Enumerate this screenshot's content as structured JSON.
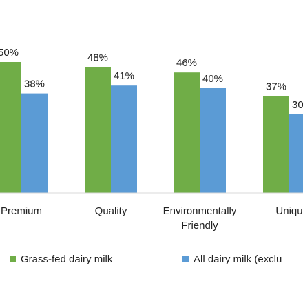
{
  "chart_data": {
    "type": "bar",
    "categories": [
      [
        "Premium"
      ],
      [
        "Quality"
      ],
      [
        "Environmentally",
        "Friendly"
      ],
      [
        "Uniqu"
      ]
    ],
    "value_suffix": "%",
    "series": [
      {
        "name": "Grass-fed dairy milk",
        "color": "#70ad47",
        "values": [
          50,
          48,
          46,
          37
        ]
      },
      {
        "name": "All dairy milk (exclu",
        "color": "#5b9bd5",
        "values": [
          38,
          41,
          40,
          30
        ]
      }
    ],
    "ylim": [
      0,
      50
    ],
    "grid": false,
    "legend_position": "bottom"
  }
}
